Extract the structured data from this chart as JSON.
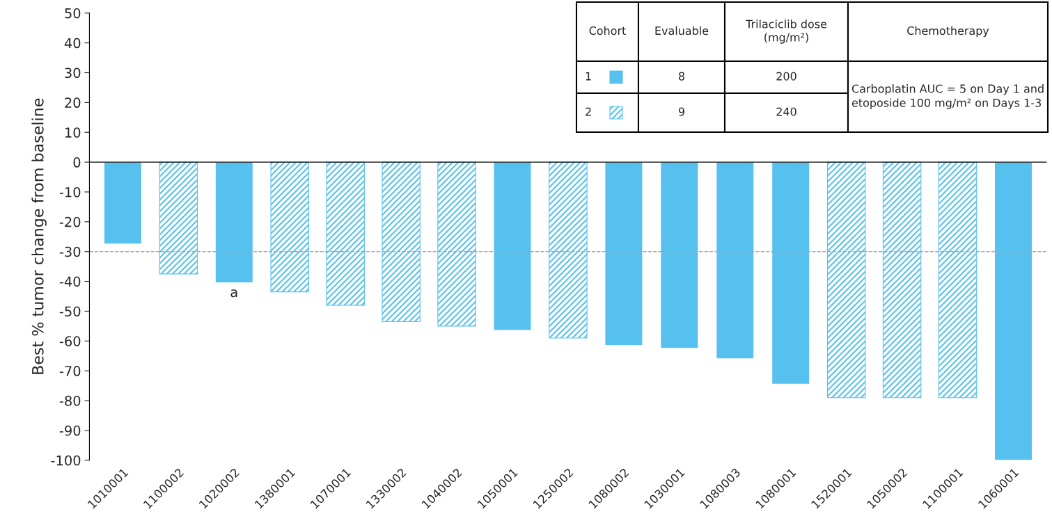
{
  "chart_data": {
    "type": "bar",
    "ylabel": "Best % tumor change from baseline",
    "categories": [
      "1010001",
      "1100002",
      "1020002",
      "1380001",
      "1070001",
      "1330002",
      "1040002",
      "1050001",
      "1250002",
      "1080002",
      "1030001",
      "1080003",
      "1080001",
      "1520001",
      "1050002",
      "1100001",
      "1060001"
    ],
    "series": [
      {
        "name": "1",
        "color": "#56c1ef",
        "values": [
          -27.5,
          null,
          -40.5,
          null,
          null,
          null,
          null,
          -56.5,
          null,
          -61.5,
          -62.5,
          -66,
          -74.5,
          null,
          null,
          null,
          -100
        ]
      },
      {
        "name": "2",
        "color": "#56c1ef",
        "values": [
          null,
          -37.5,
          null,
          -43.5,
          -48,
          -53.5,
          -55,
          null,
          -59,
          null,
          null,
          null,
          null,
          -79,
          -79,
          -79,
          null
        ]
      }
    ],
    "ylim": [
      -100,
      50
    ],
    "yticks": [
      -100,
      -90,
      -80,
      -70,
      -60,
      -50,
      -40,
      -30,
      -20,
      -10,
      0,
      10,
      20,
      30,
      40,
      50
    ],
    "ref_lines": [
      {
        "axis": "y",
        "value": -30,
        "color": "#a6a6a6",
        "line_style": "dashed"
      }
    ],
    "annotations": [
      {
        "text": "a",
        "x": "1020002",
        "y": -40.5
      },
      "Cohort",
      "Evaluable",
      "Trilaciclib dose (mg/m²)",
      "Chemotherapy",
      "8",
      "200",
      "9",
      "240",
      "Carboplatin AUC = 5 on Day 1 and etoposide 100 mg/m² on Days 1-3"
    ],
    "legend": "top right",
    "grid": false
  }
}
